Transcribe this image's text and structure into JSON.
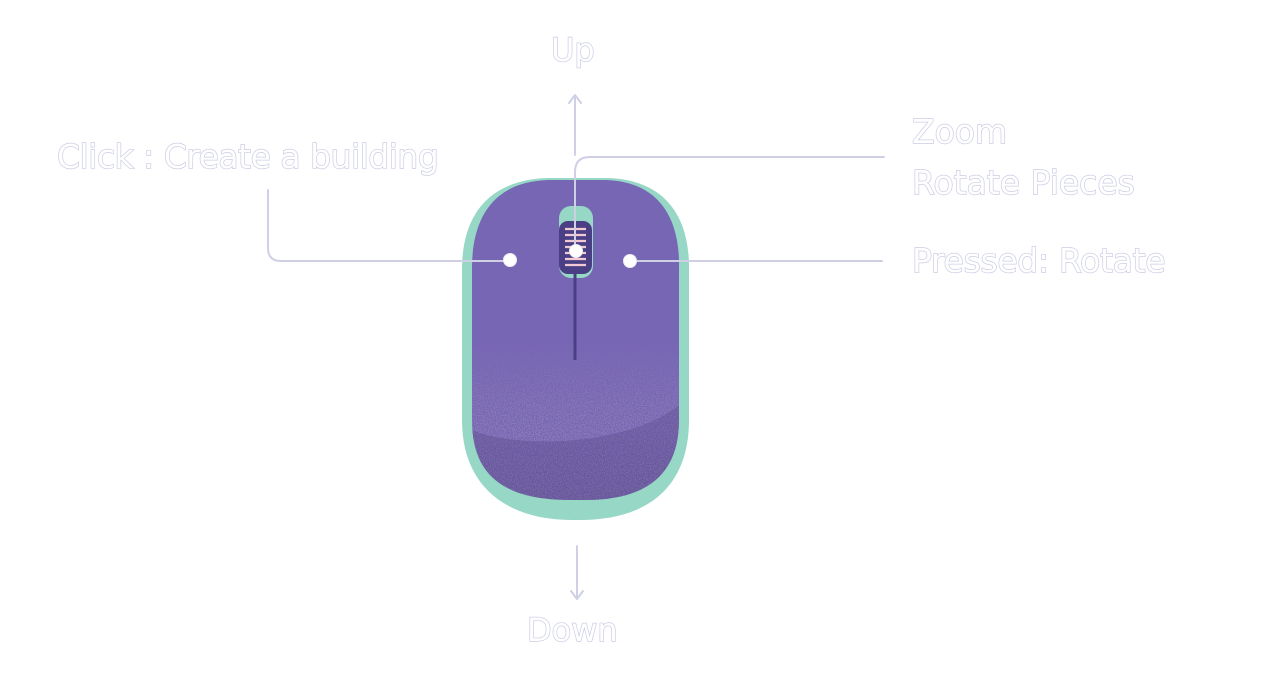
{
  "labels": {
    "up": "Up",
    "down": "Down",
    "left_click": "Click : Create a building",
    "wheel_scroll": "Zoom",
    "wheel_rotate": "Rotate Pieces",
    "wheel_pressed": "Pressed: Rotate"
  },
  "colors": {
    "mouse_body": "#7766b4",
    "mouse_shell": "#97d7c6",
    "mouse_shade": "#4f3f7e",
    "wheel": "#4a3f84",
    "wheel_rib": "#f2c9d2",
    "leader_line": "#cfd0e6",
    "label_outline": "#cfd0e6",
    "background": "#ffffff"
  }
}
